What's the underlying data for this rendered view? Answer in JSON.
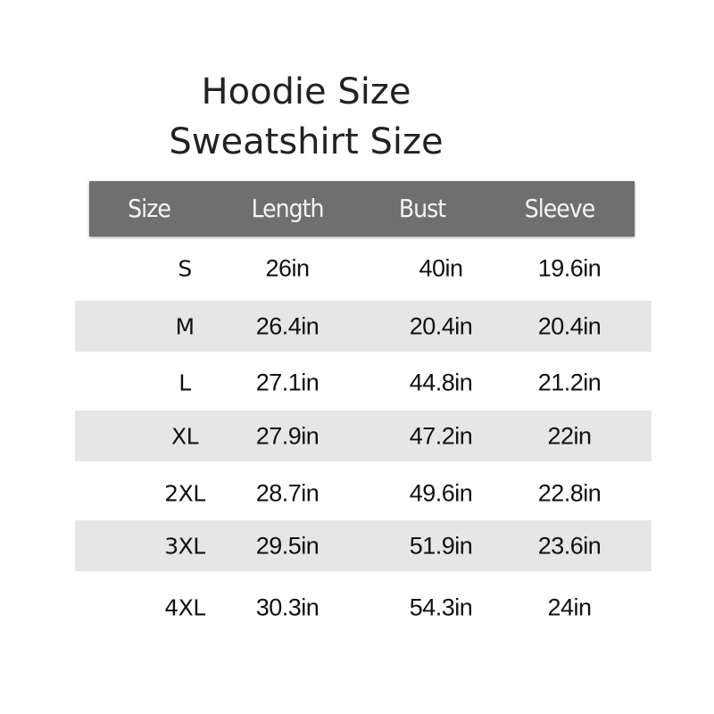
{
  "title": {
    "line1": "Hoodie Size",
    "line2": "Sweatshirt Size"
  },
  "table": {
    "headers": [
      "Size",
      "Length",
      "Bust",
      "Sleeve"
    ],
    "rows": [
      [
        "S",
        "26in",
        "40in",
        "19.6in"
      ],
      [
        "M",
        "26.4in",
        "20.4in",
        "20.4in"
      ],
      [
        "L",
        "27.1in",
        "44.8in",
        "21.2in"
      ],
      [
        "XL",
        "27.9in",
        "47.2in",
        "22in"
      ],
      [
        "2XL",
        "28.7in",
        "49.6in",
        "22.8in"
      ],
      [
        "3XL",
        "29.5in",
        "51.9in",
        "23.6in"
      ],
      [
        "4XL",
        "30.3in",
        "54.3in",
        "24in"
      ]
    ]
  },
  "colors": {
    "header_bg": "#6f6f6f",
    "stripe_bg": "#e6e6e6"
  }
}
